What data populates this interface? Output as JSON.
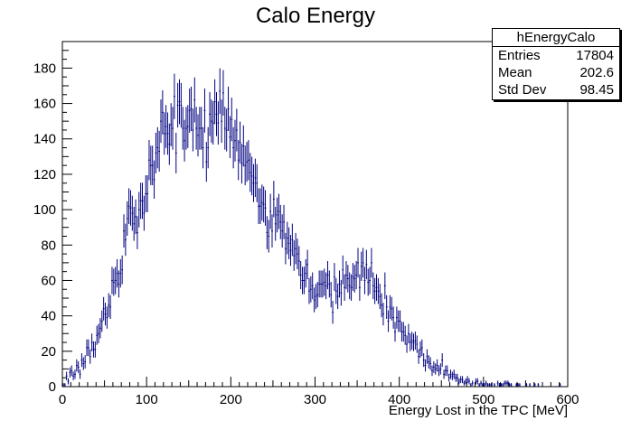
{
  "title": "Calo Energy",
  "stats": {
    "name": "hEnergyCalo",
    "rows": [
      {
        "label": "Entries",
        "value": "17804"
      },
      {
        "label": "Mean",
        "value": "202.6"
      },
      {
        "label": "Std Dev",
        "value": "98.45"
      }
    ]
  },
  "chart_data": {
    "type": "histogram-errorbars",
    "title": "Calo Energy",
    "xlabel": "Energy Lost in the TPC [MeV]",
    "ylabel": "",
    "xlim": [
      0,
      600
    ],
    "ylim": [
      0,
      195
    ],
    "x_ticks": [
      0,
      100,
      200,
      300,
      400,
      500,
      600
    ],
    "y_ticks": [
      0,
      20,
      40,
      60,
      80,
      100,
      120,
      140,
      160,
      180
    ],
    "bin_width": 2,
    "color": "#00007f",
    "grid": false,
    "anchors_x": [
      0,
      10,
      20,
      30,
      40,
      50,
      60,
      70,
      80,
      90,
      100,
      110,
      120,
      130,
      140,
      150,
      160,
      170,
      180,
      190,
      200,
      210,
      220,
      230,
      240,
      250,
      260,
      270,
      280,
      290,
      300,
      310,
      320,
      330,
      340,
      350,
      360,
      370,
      380,
      390,
      400,
      410,
      420,
      430,
      440,
      450,
      460,
      470,
      480,
      490,
      500,
      520,
      550,
      600
    ],
    "anchors_y": [
      0,
      8,
      10,
      18,
      25,
      38,
      52,
      70,
      100,
      98,
      110,
      140,
      145,
      148,
      145,
      150,
      150,
      142,
      150,
      155,
      145,
      140,
      130,
      112,
      100,
      95,
      90,
      80,
      72,
      62,
      55,
      58,
      55,
      60,
      65,
      62,
      65,
      58,
      50,
      42,
      35,
      28,
      22,
      16,
      12,
      9,
      7,
      5,
      3,
      2,
      1.5,
      1,
      0.6,
      0.3
    ]
  }
}
